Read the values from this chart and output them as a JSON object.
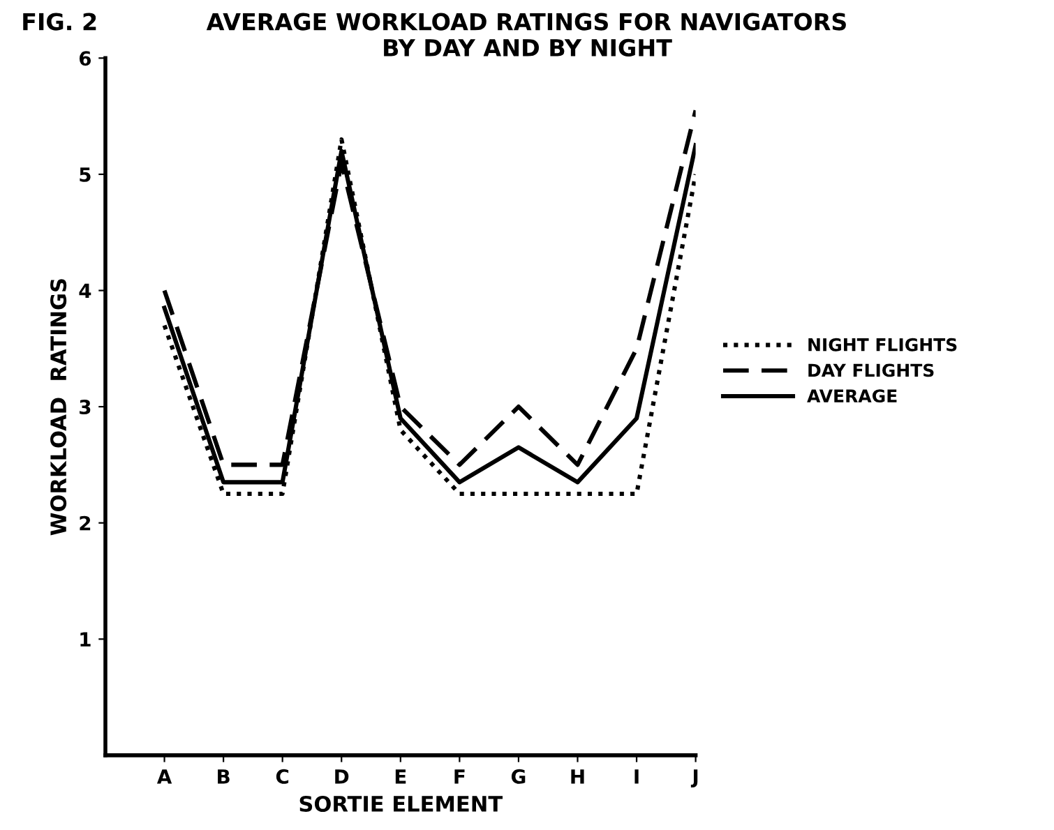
{
  "chart_data": {
    "type": "line",
    "title": "AVERAGE WORKLOAD RATINGS FOR NAVIGATORS\nBY DAY AND BY NIGHT",
    "annotations": [
      "FIG. 2"
    ],
    "xlabel": "SORTIE ELEMENT",
    "ylabel": "WORKLOAD  RATINGS",
    "categories": [
      "A",
      "B",
      "C",
      "D",
      "E",
      "F",
      "G",
      "H",
      "I",
      "J"
    ],
    "series": [
      {
        "name": "NIGHT FLIGHTS",
        "color": "#000000",
        "line_style": "dotted",
        "values": [
          3.7,
          2.25,
          2.25,
          5.3,
          2.8,
          2.25,
          2.25,
          2.25,
          2.25,
          5.0
        ]
      },
      {
        "name": "DAY FLIGHTS",
        "color": "#000000",
        "line_style": "dashed",
        "values": [
          4.0,
          2.5,
          2.5,
          5.1,
          3.0,
          2.5,
          3.0,
          2.5,
          3.5,
          5.55
        ]
      },
      {
        "name": "AVERAGE",
        "color": "#000000",
        "line_style": "solid",
        "values": [
          3.85,
          2.35,
          2.35,
          5.2,
          2.9,
          2.35,
          2.65,
          2.35,
          2.9,
          5.25
        ]
      }
    ],
    "ylim": [
      0,
      6
    ],
    "yticks": [
      1,
      2,
      3,
      4,
      5,
      6
    ],
    "grid": false,
    "legend": "right",
    "marker": "none"
  }
}
